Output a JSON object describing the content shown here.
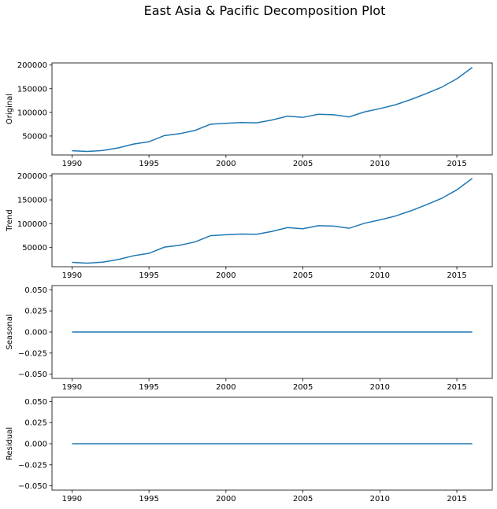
{
  "suptitle": "East Asia & Pacific Decomposition Plot",
  "colors": {
    "line": "#1f77b4",
    "axes": "#000000",
    "background": "#ffffff"
  },
  "chart_data": [
    {
      "type": "line",
      "ylabel": "Original",
      "xlim": [
        1988.7,
        2017.3
      ],
      "ylim": [
        10000,
        204500
      ],
      "x_ticks": [
        1990,
        1995,
        2000,
        2005,
        2010,
        2015
      ],
      "y_ticks": [
        50000,
        100000,
        150000,
        200000
      ],
      "y_tick_labels": [
        "50000",
        "100000",
        "150000",
        "200000"
      ],
      "grid": false,
      "x": [
        1990,
        1991,
        1992,
        1993,
        1994,
        1995,
        1996,
        1997,
        1998,
        1999,
        2000,
        2001,
        2002,
        2003,
        2004,
        2005,
        2006,
        2007,
        2008,
        2009,
        2010,
        2011,
        2012,
        2013,
        2014,
        2015,
        2016
      ],
      "values": [
        19000,
        17500,
        19500,
        25000,
        33000,
        38000,
        51000,
        55000,
        62000,
        75000,
        77000,
        78500,
        78000,
        84000,
        92000,
        89500,
        96000,
        95000,
        90500,
        101000,
        108000,
        116000,
        127000,
        139500,
        153000,
        171000,
        195000
      ]
    },
    {
      "type": "line",
      "ylabel": "Trend",
      "xlim": [
        1988.7,
        2017.3
      ],
      "ylim": [
        10000,
        204500
      ],
      "x_ticks": [
        1990,
        1995,
        2000,
        2005,
        2010,
        2015
      ],
      "y_ticks": [
        50000,
        100000,
        150000,
        200000
      ],
      "y_tick_labels": [
        "50000",
        "100000",
        "150000",
        "200000"
      ],
      "grid": false,
      "x": [
        1990,
        1991,
        1992,
        1993,
        1994,
        1995,
        1996,
        1997,
        1998,
        1999,
        2000,
        2001,
        2002,
        2003,
        2004,
        2005,
        2006,
        2007,
        2008,
        2009,
        2010,
        2011,
        2012,
        2013,
        2014,
        2015,
        2016
      ],
      "values": [
        19000,
        17500,
        19500,
        25000,
        33000,
        38000,
        51000,
        55000,
        62000,
        75000,
        77000,
        78500,
        78000,
        84000,
        92000,
        89500,
        96000,
        95000,
        90500,
        101000,
        108000,
        116000,
        127000,
        139500,
        153000,
        171000,
        195000
      ]
    },
    {
      "type": "line",
      "ylabel": "Seasonal",
      "xlim": [
        1988.7,
        2017.3
      ],
      "ylim": [
        -0.055,
        0.055
      ],
      "x_ticks": [
        1990,
        1995,
        2000,
        2005,
        2010,
        2015
      ],
      "y_ticks": [
        -0.05,
        -0.025,
        0.0,
        0.025,
        0.05
      ],
      "y_tick_labels": [
        "−0.050",
        "−0.025",
        "0.000",
        "0.025",
        "0.050"
      ],
      "grid": false,
      "x": [
        1990,
        2016
      ],
      "values": [
        0,
        0
      ]
    },
    {
      "type": "line",
      "ylabel": "Residual",
      "xlim": [
        1988.7,
        2017.3
      ],
      "ylim": [
        -0.055,
        0.055
      ],
      "x_ticks": [
        1990,
        1995,
        2000,
        2005,
        2010,
        2015
      ],
      "y_ticks": [
        -0.05,
        -0.025,
        0.0,
        0.025,
        0.05
      ],
      "y_tick_labels": [
        "−0.050",
        "−0.025",
        "0.000",
        "0.025",
        "0.050"
      ],
      "grid": false,
      "x": [
        1990,
        2016
      ],
      "values": [
        0,
        0
      ]
    }
  ]
}
